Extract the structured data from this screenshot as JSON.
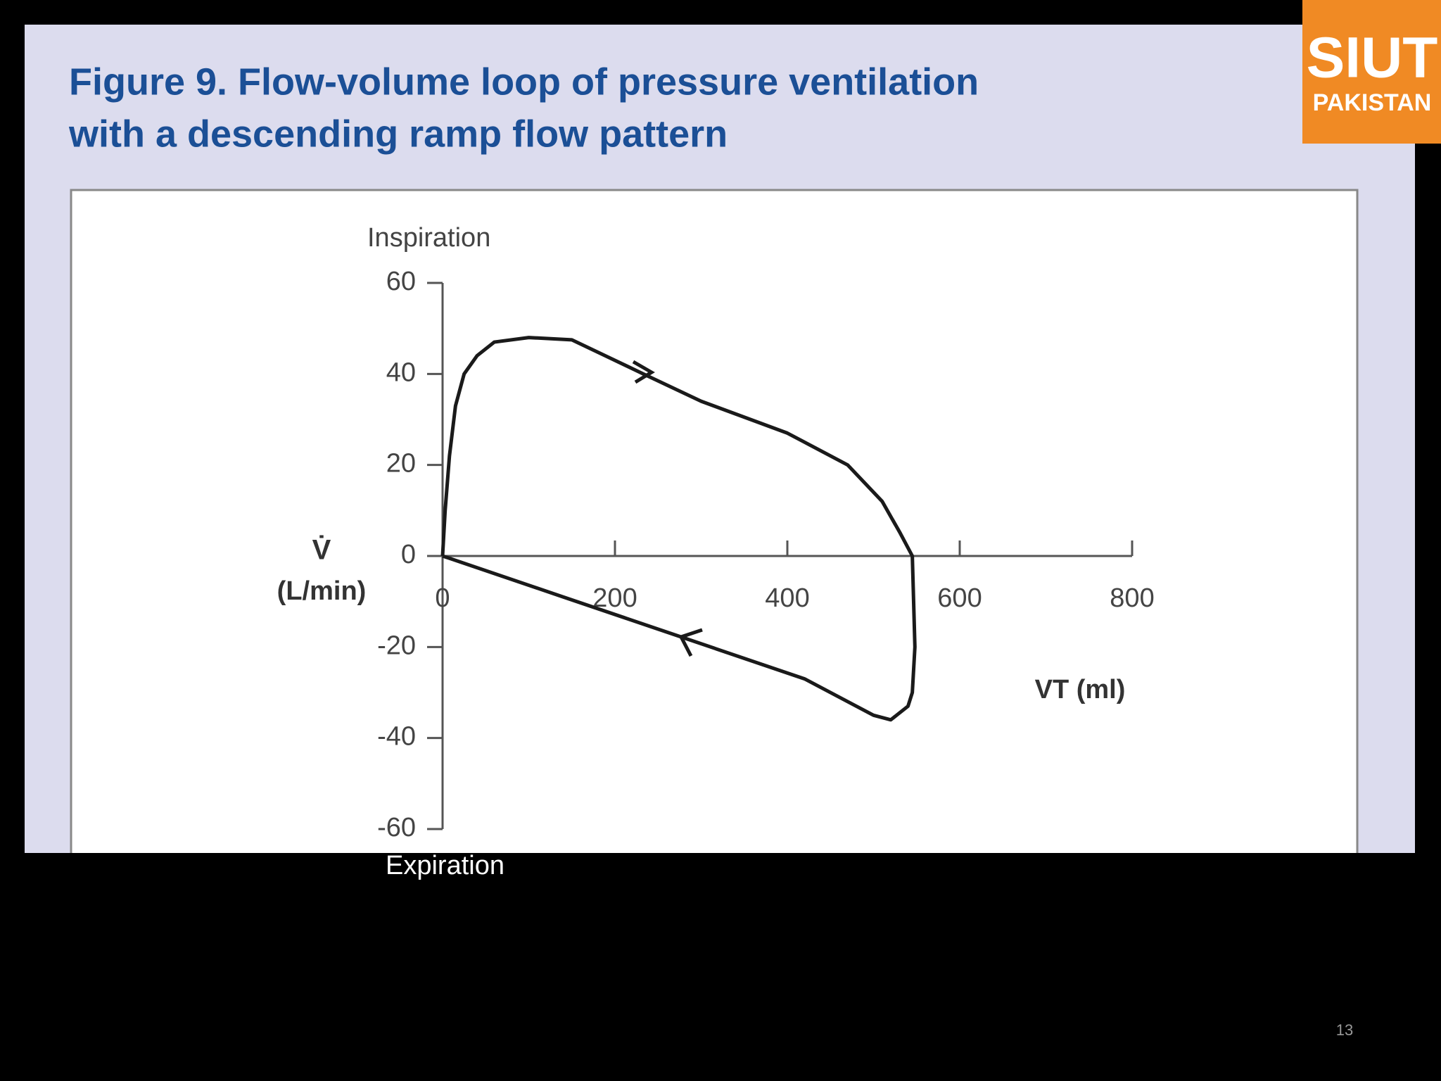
{
  "chart_data": {
    "type": "line",
    "title_lines": [
      "Figure 9. Flow-volume loop of pressure ventilation",
      "with a descending ramp flow pattern"
    ],
    "top_label": "Inspiration",
    "bottom_label": "Expiration",
    "y_label_symbol": "V̇",
    "y_label_unit": "(L/min)",
    "x_label": "VT (ml)",
    "x": [
      0,
      3,
      8,
      15,
      25,
      40,
      60,
      100,
      150,
      233,
      300,
      400,
      470,
      510,
      531,
      545,
      548,
      545,
      540,
      520,
      500,
      470,
      420,
      280,
      140,
      0
    ],
    "values": [
      0,
      10,
      22,
      33,
      40,
      44,
      47,
      48,
      47.5,
      40,
      34,
      27,
      20,
      12,
      5,
      0,
      -20,
      -30,
      -33,
      -36,
      -35,
      -32,
      -27,
      -18,
      -9,
      0
    ],
    "color": "#1a1a1a",
    "xlim": [
      0,
      800
    ],
    "xticks": [
      0,
      200,
      400,
      600,
      800
    ],
    "ylim": [
      -60,
      60
    ],
    "yticks": [
      60,
      40,
      20,
      0,
      -20,
      -40,
      -60
    ]
  },
  "logo": {
    "name": "SIUT",
    "country": "PAKISTAN"
  },
  "page_number": "13"
}
